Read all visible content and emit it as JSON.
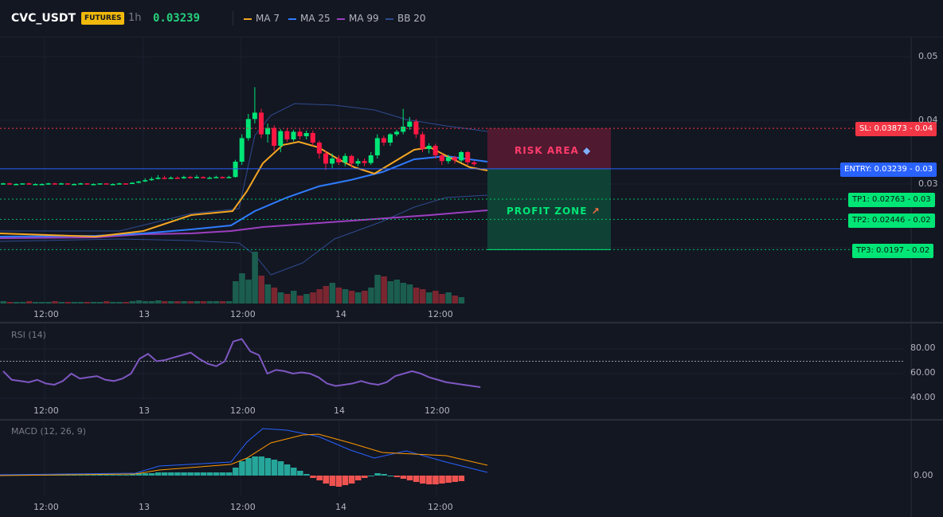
{
  "header": {
    "symbol": "CVC_USDT",
    "badge": "FUTURES",
    "interval": "1h",
    "price": "0.03239",
    "indicators": [
      {
        "name": "MA 7",
        "color": "#f5a623"
      },
      {
        "name": "MA 25",
        "color": "#2f7bff"
      },
      {
        "name": "MA 99",
        "color": "#9c3fc0"
      },
      {
        "name": "BB 20",
        "color": "#2e4a8f"
      }
    ]
  },
  "price_axis": {
    "labels": [
      "0.05",
      "0.04",
      "0.03"
    ]
  },
  "time_axis": {
    "labels": [
      "12:00",
      "13",
      "12:00",
      "14",
      "12:00"
    ]
  },
  "levels": {
    "sl": {
      "label": "SL: 0.03873 - 0.04",
      "value": 0.03873,
      "color": "#f23645"
    },
    "entry": {
      "label": "ENTRY: 0.03239 - 0.03",
      "value": 0.03239,
      "color": "#2962ff"
    },
    "tp1": {
      "label": "TP1: 0.02763 - 0.03",
      "value": 0.02763,
      "color": "#00e676"
    },
    "tp2": {
      "label": "TP2: 0.02446 - 0.02",
      "value": 0.02446,
      "color": "#00e676"
    },
    "tp3": {
      "label": "TP3: 0.0197 - 0.02",
      "value": 0.0197,
      "color": "#00e676"
    }
  },
  "zones": {
    "risk_label": "RISK AREA",
    "profit_label": "PROFIT ZONE"
  },
  "rsi": {
    "title": "RSI (14)",
    "axis_labels": [
      "80.00",
      "60.00",
      "40.00"
    ],
    "overbought": 70,
    "color": "#7e57c2"
  },
  "macd": {
    "title": "MACD (12, 26, 9)",
    "axis_labels": [
      "0.00"
    ],
    "macd_color": "#2962ff",
    "signal_color": "#ff9800",
    "hist_pos_color": "#26a69a",
    "hist_neg_color": "#ef5350"
  },
  "colors": {
    "up": "#00e676",
    "down": "#ff1744",
    "vol_up": "#1b5e4f",
    "vol_down": "#7a2630"
  }
}
